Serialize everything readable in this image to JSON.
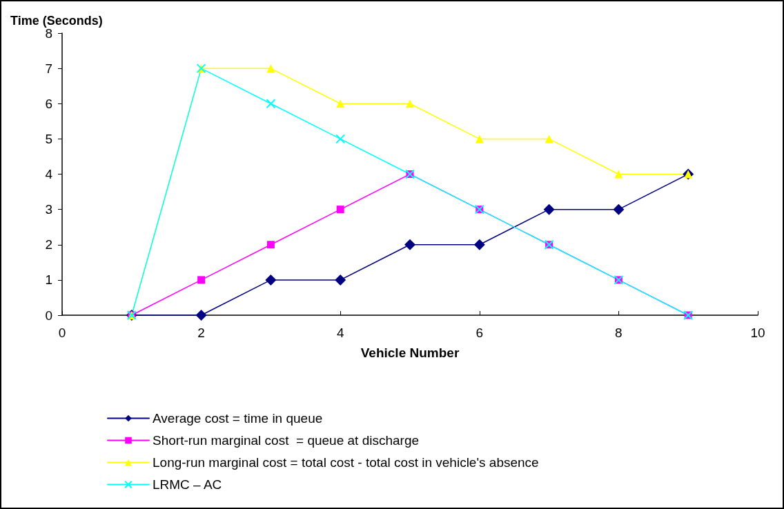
{
  "chart_data": {
    "type": "line",
    "xlabel": "Vehicle Number",
    "ylabel": "Time (Seconds)",
    "x": [
      1,
      2,
      3,
      4,
      5,
      6,
      7,
      8,
      9
    ],
    "series": [
      {
        "name": "Average cost = time in queue",
        "color": "#000080",
        "marker": "diamond",
        "values": [
          0,
          0,
          1,
          1,
          2,
          2,
          3,
          3,
          4
        ]
      },
      {
        "name": "Short-run marginal cost  = queue at discharge",
        "color": "#ff00ff",
        "marker": "square",
        "values": [
          0,
          1,
          2,
          3,
          4,
          3,
          2,
          1,
          0
        ]
      },
      {
        "name": "Long-run marginal cost = total cost - total cost in vehicle's absence",
        "color": "#ffff00",
        "marker": "triangle",
        "values": [
          0,
          7,
          7,
          6,
          6,
          5,
          5,
          4,
          4
        ]
      },
      {
        "name": "LRMC – AC",
        "color": "#00ffff",
        "marker": "cross",
        "values": [
          0,
          7,
          6,
          5,
          4,
          3,
          2,
          1,
          0
        ]
      }
    ],
    "xlim": [
      0,
      10
    ],
    "xticks": [
      0,
      2,
      4,
      6,
      8,
      10
    ],
    "ylim": [
      0,
      8
    ],
    "yticks": [
      0,
      1,
      2,
      3,
      4,
      5,
      6,
      7,
      8
    ],
    "grid": false,
    "legend": "bottom",
    "line_style": "solid"
  }
}
